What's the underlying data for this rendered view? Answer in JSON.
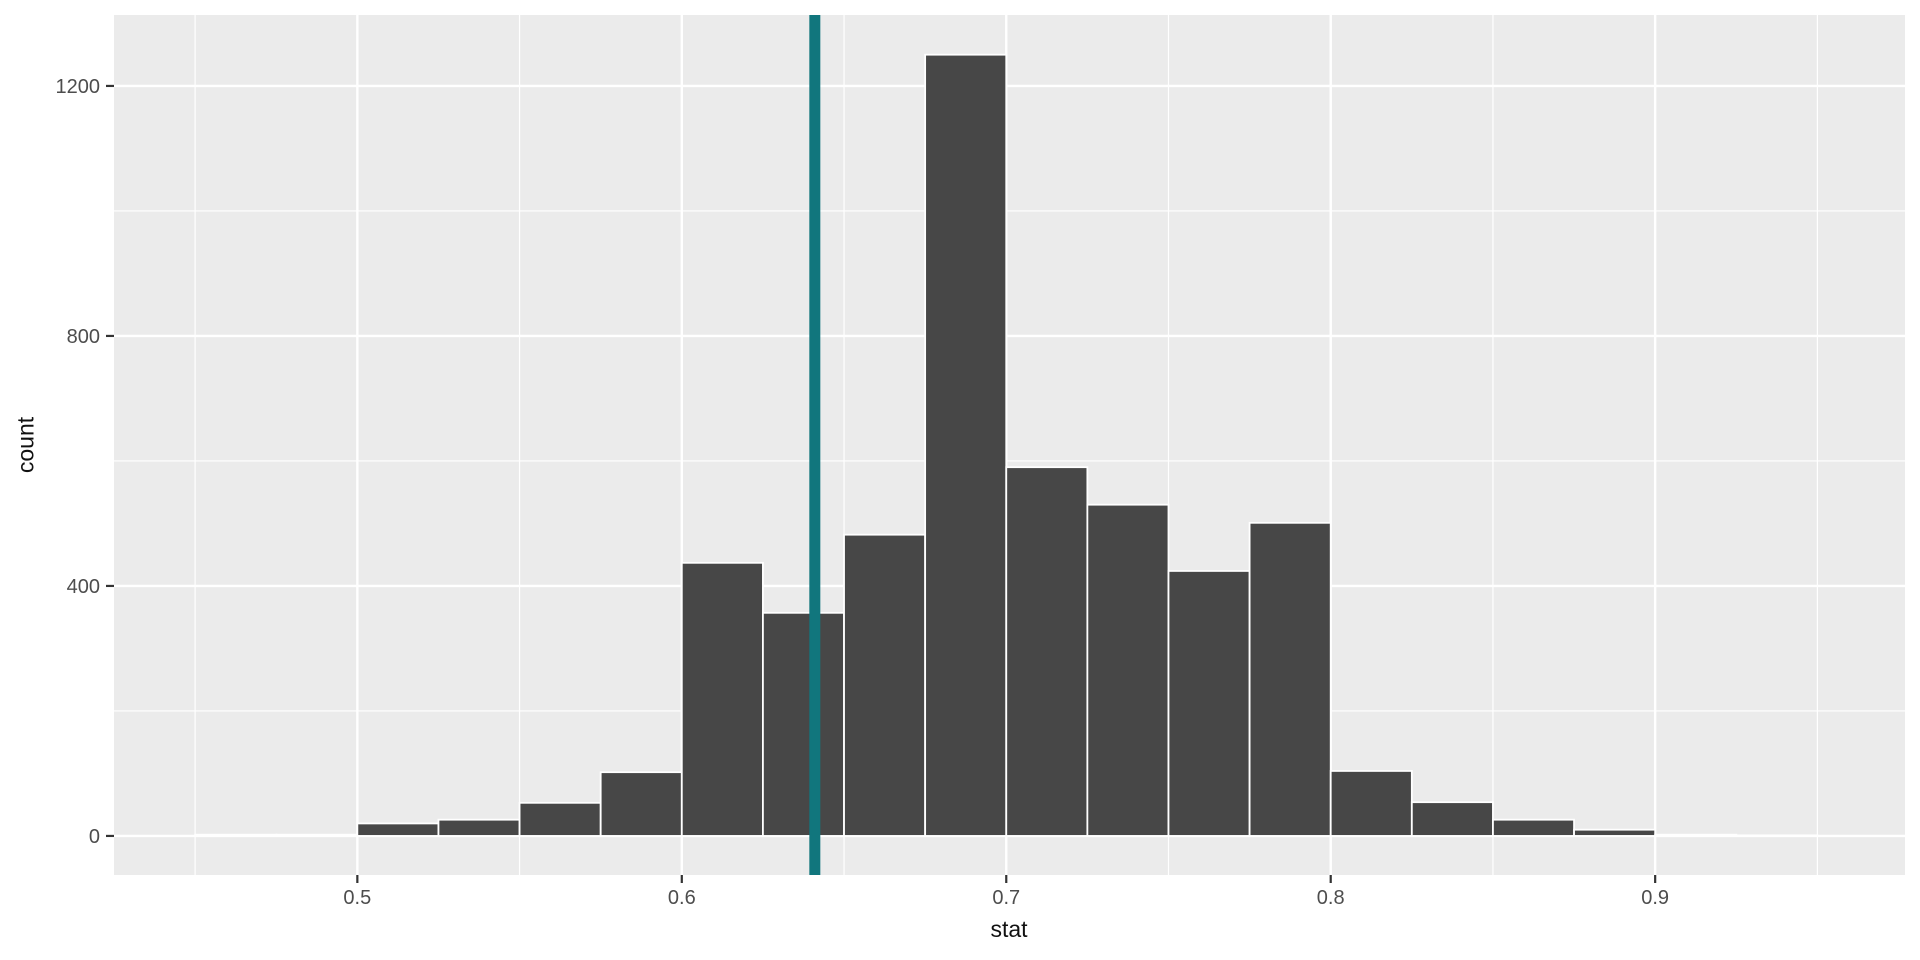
{
  "chart_data": {
    "type": "bar",
    "subtype": "histogram",
    "title": "",
    "xlabel": "stat",
    "ylabel": "count",
    "bin_width": 0.025,
    "bins": {
      "starts": [
        0.45,
        0.475,
        0.5,
        0.525,
        0.55,
        0.575,
        0.6,
        0.625,
        0.65,
        0.675,
        0.7,
        0.725,
        0.75,
        0.775,
        0.8,
        0.825,
        0.85,
        0.875,
        0.9,
        0.925
      ],
      "counts": [
        2,
        2,
        20,
        26,
        53,
        102,
        437,
        357,
        482,
        1250,
        590,
        530,
        424,
        501,
        104,
        54,
        26,
        10,
        2,
        1
      ]
    },
    "x_ticks": [
      0.5,
      0.6,
      0.7,
      0.8,
      0.9
    ],
    "x_tick_labels": [
      "0.5",
      "0.6",
      "0.7",
      "0.8",
      "0.9"
    ],
    "x_minor_ticks": [
      0.45,
      0.55,
      0.65,
      0.75,
      0.85,
      0.95
    ],
    "y_ticks": [
      0,
      400,
      800,
      1200
    ],
    "y_tick_labels": [
      "0",
      "400",
      "800",
      "1200"
    ],
    "y_minor_ticks": [
      200,
      600,
      1000
    ],
    "xlim": [
      0.425,
      0.977
    ],
    "ylim": [
      -62.5,
      1313.5
    ],
    "grid": "major and minor white gridlines on gray panel",
    "legend": "none",
    "vline": {
      "x": 0.641,
      "color": "#11767D",
      "stroke_width": 11
    },
    "colors": {
      "panel_background": "#EBEBEB",
      "gridline": "#FFFFFF",
      "bar_fill": "#474747",
      "bar_stroke": "#FFFFFF",
      "tick_label": "#4D4D4D",
      "tick_mark": "#333333",
      "axis_title": "#111111",
      "outer_background": "#FFFFFF"
    }
  }
}
